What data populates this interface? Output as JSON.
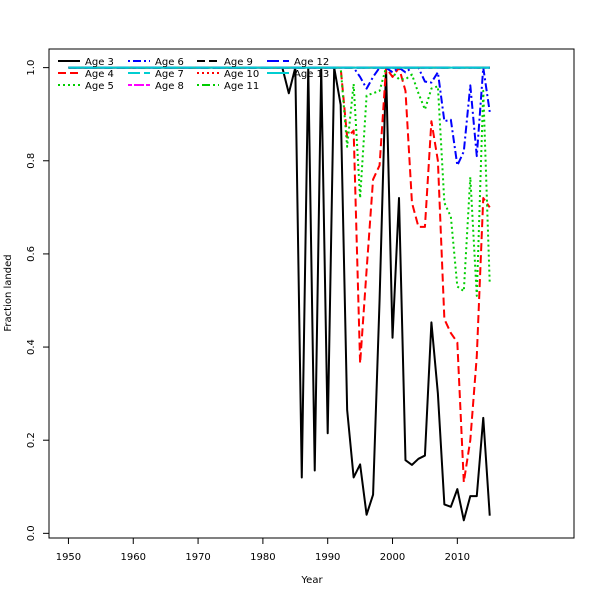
{
  "chart_data": {
    "type": "line",
    "title": "",
    "xlabel": "Year",
    "ylabel": "Fraction landed",
    "xlim": [
      1947,
      2028
    ],
    "ylim": [
      -0.01,
      1.04
    ],
    "xticks": [
      1950,
      1960,
      1970,
      1980,
      1990,
      2000,
      2010
    ],
    "yticks": [
      0.0,
      0.2,
      0.4,
      0.6,
      0.8,
      1.0
    ],
    "xtick_labels": [
      "1950",
      "1960",
      "1970",
      "1980",
      "1990",
      "2000",
      "2010"
    ],
    "ytick_labels": [
      "0.0",
      "0.2",
      "0.4",
      "0.6",
      "0.8",
      "1.0"
    ],
    "grid": false,
    "legend_position": "top-left",
    "series": [
      {
        "name": "Age 3",
        "color": "#000000",
        "dash": "solid",
        "x": [
          1950,
          1951,
          1952,
          1953,
          1954,
          1955,
          1956,
          1957,
          1958,
          1959,
          1960,
          1961,
          1962,
          1963,
          1964,
          1965,
          1966,
          1967,
          1968,
          1969,
          1970,
          1971,
          1972,
          1973,
          1974,
          1975,
          1976,
          1977,
          1978,
          1979,
          1980,
          1981,
          1982,
          1983,
          1984,
          1985,
          1986,
          1987,
          1988,
          1989,
          1990,
          1991,
          1992,
          1993,
          1994,
          1995,
          1996,
          1997,
          1998,
          1999,
          2000,
          2001,
          2002,
          2003,
          2004,
          2005,
          2006,
          2007,
          2008,
          2009,
          2010,
          2011,
          2012,
          2013,
          2014,
          2015
        ],
        "y": [
          1,
          1,
          1,
          1,
          1,
          1,
          1,
          1,
          1,
          1,
          1,
          1,
          1,
          1,
          1,
          1,
          1,
          1,
          1,
          1,
          1,
          1,
          1,
          1,
          1,
          1,
          1,
          1,
          1,
          1,
          1,
          1,
          1,
          1,
          0.945,
          1,
          0.12,
          1,
          0.135,
          1,
          0.215,
          1,
          0.92,
          0.265,
          0.12,
          0.148,
          0.04,
          0.083,
          0.5,
          1,
          0.42,
          0.72,
          0.157,
          0.147,
          0.16,
          0.167,
          0.453,
          0.3,
          0.062,
          0.057,
          0.095,
          0.028,
          0.08,
          0.08,
          0.248,
          0.038
        ]
      },
      {
        "name": "Age 4",
        "color": "#ff0000",
        "dash": "dashed",
        "x": [
          1950,
          1960,
          1970,
          1980,
          1990,
          1991,
          1992,
          1993,
          1994,
          1995,
          1996,
          1997,
          1998,
          1999,
          2000,
          2001,
          2002,
          2003,
          2004,
          2005,
          2006,
          2007,
          2008,
          2009,
          2010,
          2011,
          2012,
          2013,
          2014,
          2015
        ],
        "y": [
          1,
          1,
          1,
          1,
          1,
          1,
          1,
          0.85,
          0.865,
          0.365,
          0.565,
          0.76,
          0.79,
          1,
          0.98,
          1,
          0.95,
          0.71,
          0.658,
          0.658,
          0.885,
          0.8,
          0.46,
          0.43,
          0.41,
          0.11,
          0.2,
          0.38,
          0.72,
          0.7
        ]
      },
      {
        "name": "Age 5",
        "color": "#00cd00",
        "dash": "dotted",
        "x": [
          1950,
          1960,
          1970,
          1980,
          1990,
          1991,
          1992,
          1993,
          1994,
          1995,
          1996,
          1997,
          1998,
          1999,
          2000,
          2001,
          2002,
          2003,
          2004,
          2005,
          2006,
          2007,
          2008,
          2009,
          2010,
          2011,
          2012,
          2013,
          2014,
          2015
        ],
        "y": [
          1,
          1,
          1,
          1,
          1,
          1,
          1,
          0.83,
          0.965,
          0.72,
          0.94,
          0.945,
          0.95,
          1,
          0.99,
          0.975,
          0.975,
          0.985,
          0.945,
          0.91,
          0.955,
          0.96,
          0.71,
          0.68,
          0.53,
          0.52,
          0.765,
          0.51,
          0.95,
          0.535
        ]
      },
      {
        "name": "Age 6",
        "color": "#0000ff",
        "dash": "dotdash",
        "x": [
          1950,
          1960,
          1970,
          1980,
          1990,
          1991,
          1992,
          1993,
          1994,
          1995,
          1996,
          1997,
          1998,
          1999,
          2000,
          2001,
          2002,
          2003,
          2004,
          2005,
          2006,
          2007,
          2008,
          2009,
          2010,
          2011,
          2012,
          2013,
          2014,
          2015
        ],
        "y": [
          1,
          1,
          1,
          1,
          1,
          1,
          1,
          1,
          1,
          0.98,
          0.955,
          0.98,
          1,
          1,
          0.99,
          1,
          0.99,
          1,
          1,
          0.97,
          0.968,
          0.99,
          0.885,
          0.888,
          0.79,
          0.82,
          0.962,
          0.81,
          1,
          0.905
        ]
      },
      {
        "name": "Age 7",
        "color": "#00ced1",
        "dash": "longdash",
        "x": [
          1950,
          2015
        ],
        "y": [
          1,
          1
        ]
      },
      {
        "name": "Age 8",
        "color": "#ff00ff",
        "dash": "twodash",
        "x": [
          1950,
          2015
        ],
        "y": [
          1,
          1
        ]
      },
      {
        "name": "Age 9",
        "color": "#000000",
        "dash": "dashed",
        "x": [
          1950,
          2015
        ],
        "y": [
          1,
          1
        ]
      },
      {
        "name": "Age 10",
        "color": "#ff0000",
        "dash": "dotted",
        "x": [
          1950,
          2015
        ],
        "y": [
          1,
          1
        ]
      },
      {
        "name": "Age 11",
        "color": "#00cd00",
        "dash": "dotdash",
        "x": [
          1950,
          2015
        ],
        "y": [
          1,
          1
        ]
      },
      {
        "name": "Age 12",
        "color": "#0000ff",
        "dash": "longdash",
        "x": [
          1950,
          2015
        ],
        "y": [
          1,
          1
        ]
      },
      {
        "name": "Age 13",
        "color": "#00ced1",
        "dash": "solid",
        "x": [
          1950,
          2015
        ],
        "y": [
          1,
          1
        ]
      }
    ]
  }
}
